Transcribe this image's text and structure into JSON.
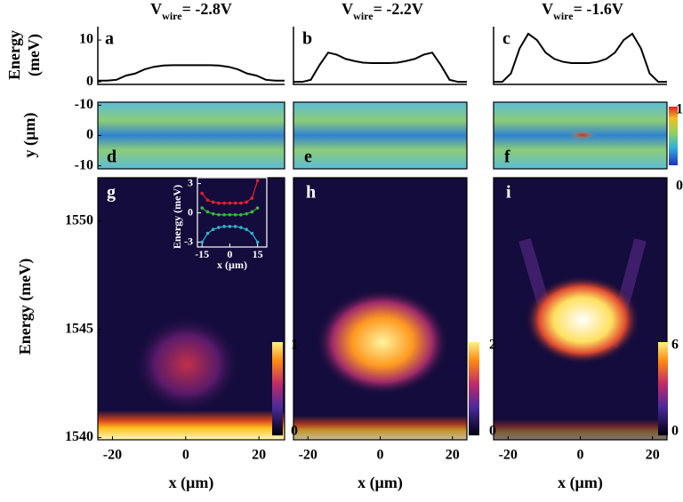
{
  "chart_data": [
    {
      "type": "line",
      "panel": "a",
      "title": {
        "main": "V",
        "sub": "wire",
        "rest": "= -2.8V"
      },
      "ylabel": [
        "Energy",
        "(meV)"
      ],
      "x": [
        -25,
        -22.5,
        -20,
        -17.5,
        -15,
        -12.5,
        -10,
        -7.5,
        -5,
        -2.5,
        0,
        2.5,
        5,
        7.5,
        10,
        12.5,
        15,
        17.5,
        20,
        22.5,
        25
      ],
      "values": [
        0.3,
        0.3,
        0.5,
        1.5,
        2,
        3,
        3.6,
        3.9,
        4,
        4,
        4,
        4,
        4,
        3.9,
        3.6,
        3,
        2,
        1.5,
        0.5,
        0.3,
        0.3
      ],
      "color": "#000000",
      "xlim": [
        -25,
        25
      ],
      "ylim": [
        -0.6,
        13.2
      ],
      "yticks": [
        0,
        10
      ]
    },
    {
      "type": "line",
      "panel": "b",
      "title": {
        "main": "V",
        "sub": "wire",
        "rest": "= -2.2V"
      },
      "x": [
        -25,
        -22.5,
        -20,
        -17.5,
        -15,
        -12.5,
        -10,
        -7.5,
        -5,
        -2.5,
        0,
        2.5,
        5,
        7.5,
        10,
        12.5,
        15,
        17.5,
        20,
        22.5,
        25
      ],
      "values": [
        0,
        0,
        0.5,
        4,
        7,
        6.5,
        5.5,
        5,
        4.6,
        4.5,
        4.5,
        4.5,
        4.6,
        5,
        5.5,
        6.5,
        7,
        4,
        0.5,
        0,
        0
      ],
      "color": "#000000",
      "xlim": [
        -25,
        25
      ],
      "ylim": [
        -0.6,
        13.2
      ]
    },
    {
      "type": "line",
      "panel": "c",
      "title": {
        "main": "V",
        "sub": "wire",
        "rest": "= -1.6V"
      },
      "x": [
        -25,
        -22.5,
        -20,
        -17.5,
        -15,
        -12.5,
        -10,
        -7.5,
        -5,
        -2.5,
        0,
        2.5,
        5,
        7.5,
        10,
        12.5,
        15,
        17.5,
        20,
        22.5,
        25
      ],
      "values": [
        0,
        0,
        2,
        8,
        11.5,
        10,
        7,
        5.5,
        4.8,
        4.5,
        4.5,
        4.5,
        4.8,
        5.5,
        7,
        10,
        11.5,
        8,
        2,
        0,
        0
      ],
      "color": "#000000",
      "xlim": [
        -25,
        25
      ],
      "ylim": [
        -0.6,
        13.2
      ]
    },
    {
      "type": "heatmap",
      "panel": "d",
      "ylabel": "y (µm)",
      "ylim": [
        -11,
        11
      ],
      "yticks": [
        -10,
        0,
        {
          "value": 10,
          "label": "-10"
        }
      ]
    },
    {
      "type": "heatmap",
      "panel": "e",
      "ylim": [
        -11,
        11
      ]
    },
    {
      "type": "heatmap",
      "panel": "f",
      "ylim": [
        -11,
        11
      ],
      "colorbar": [
        0,
        1
      ]
    },
    {
      "type": "heatmap",
      "panel": "g",
      "ylabel": "Energy (meV)",
      "xlabel": "x (µm)",
      "xlim": [
        -24,
        27
      ],
      "ylim": [
        1539.9,
        1552
      ],
      "xticks": [
        -20,
        0,
        20
      ],
      "yticks": [
        1540,
        1545,
        1550
      ],
      "colorbar": [
        0,
        1
      ]
    },
    {
      "type": "heatmap",
      "panel": "h",
      "xlabel": "x (µm)",
      "xlim": [
        -24,
        24
      ],
      "ylim": [
        1539.9,
        1552
      ],
      "xticks": [
        -20,
        0,
        20
      ],
      "colorbar": [
        0,
        2
      ]
    },
    {
      "type": "heatmap",
      "panel": "i",
      "xlabel": "x (µm)",
      "xlim": [
        -24,
        24
      ],
      "ylim": [
        1539.9,
        1552
      ],
      "xticks": [
        -20,
        0,
        20
      ],
      "colorbar": [
        0,
        6
      ]
    },
    {
      "type": "line",
      "xlabel": "x (µm)",
      "ylabel": "Energy (meV)",
      "x": [
        -15,
        -12,
        -9,
        -6,
        -3,
        0,
        3,
        6,
        9,
        12,
        15
      ],
      "xlim": [
        -17.5,
        20
      ],
      "ylim": [
        -3.5,
        3.6
      ],
      "xticks": [
        -15,
        0,
        15
      ],
      "yticks": [
        -3,
        0,
        3
      ],
      "series": [
        {
          "color": "#e8202a",
          "values": [
            2,
            1.3,
            1.1,
            1,
            1,
            1,
            1,
            1,
            1.1,
            1.5,
            3.3
          ]
        },
        {
          "color": "#3cb83c",
          "values": [
            0.5,
            0.1,
            -0.1,
            -0.2,
            -0.2,
            -0.2,
            -0.2,
            -0.2,
            -0.1,
            0.1,
            0.5
          ]
        },
        {
          "color": "#2fb4d0",
          "values": [
            -3,
            -2.1,
            -1.7,
            -1.5,
            -1.4,
            -1.4,
            -1.4,
            -1.5,
            -1.7,
            -2.1,
            -3
          ]
        }
      ]
    }
  ]
}
